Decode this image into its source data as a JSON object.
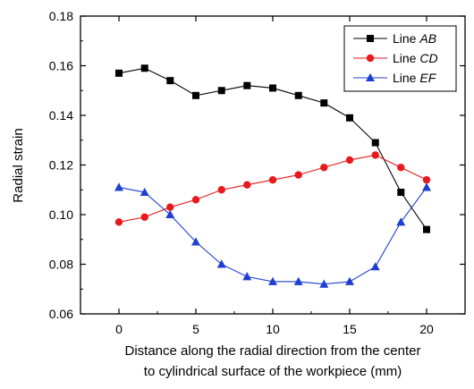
{
  "chart_data": {
    "type": "line",
    "xlabel_line1": "Distance along the radial direction from the center",
    "xlabel_line2": "to cylindrical surface of the workpiece  (mm)",
    "ylabel": "Radial strain",
    "xlim": [
      -2.5,
      22.5
    ],
    "ylim": [
      0.06,
      0.18
    ],
    "xticks": [
      "0",
      "5",
      "10",
      "15",
      "20"
    ],
    "xtick_values": [
      0,
      5,
      10,
      15,
      20
    ],
    "yticks": [
      "0.06",
      "0.08",
      "0.10",
      "0.12",
      "0.14",
      "0.16",
      "0.18"
    ],
    "ytick_values": [
      0.06,
      0.08,
      0.1,
      0.12,
      0.14,
      0.16,
      0.18
    ],
    "legend_position": "top-right",
    "series": [
      {
        "name": "AB",
        "legend_prefix": "Line ",
        "color": "#000000",
        "marker": "square",
        "x": [
          0,
          1.67,
          3.33,
          5.0,
          6.67,
          8.33,
          10.0,
          11.67,
          13.33,
          15.0,
          16.67,
          18.33,
          20.0
        ],
        "y": [
          0.157,
          0.159,
          0.154,
          0.148,
          0.15,
          0.152,
          0.151,
          0.148,
          0.145,
          0.139,
          0.129,
          0.109,
          0.094
        ]
      },
      {
        "name": "CD",
        "legend_prefix": "Line ",
        "color": "#e8191a",
        "marker": "circle",
        "x": [
          0,
          1.67,
          3.33,
          5.0,
          6.67,
          8.33,
          10.0,
          11.67,
          13.33,
          15.0,
          16.67,
          18.33,
          20.0
        ],
        "y": [
          0.097,
          0.099,
          0.103,
          0.106,
          0.11,
          0.112,
          0.114,
          0.116,
          0.119,
          0.122,
          0.124,
          0.119,
          0.114
        ]
      },
      {
        "name": "EF",
        "legend_prefix": "Line ",
        "color": "#1f3fd0",
        "marker": "triangle",
        "x": [
          0,
          1.67,
          3.33,
          5.0,
          6.67,
          8.33,
          10.0,
          11.67,
          13.33,
          15.0,
          16.67,
          18.33,
          20.0
        ],
        "y": [
          0.111,
          0.109,
          0.1,
          0.089,
          0.08,
          0.075,
          0.073,
          0.073,
          0.072,
          0.073,
          0.079,
          0.097,
          0.111
        ]
      }
    ]
  }
}
